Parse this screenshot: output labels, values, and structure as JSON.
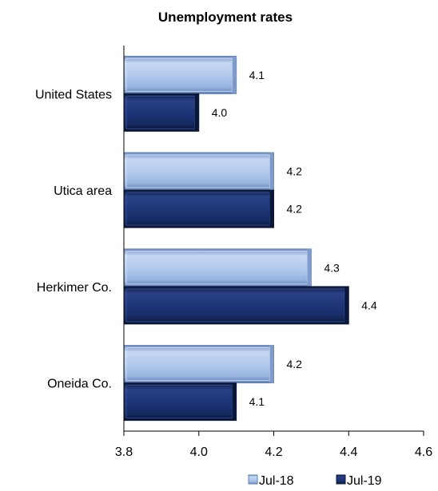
{
  "chart_data": {
    "type": "bar",
    "orientation": "horizontal",
    "title": "Unemployment rates",
    "categories": [
      "United States",
      "Utica area",
      "Herkimer Co.",
      "Oneida Co."
    ],
    "series": [
      {
        "name": "Jul-18",
        "values": [
          4.1,
          4.2,
          4.3,
          4.2
        ],
        "labels": [
          "4.1",
          "4.2",
          "4.3",
          "4.2"
        ],
        "color": "#a9c4ec",
        "edge": "#5d7fb0"
      },
      {
        "name": "Jul-19",
        "values": [
          4.0,
          4.2,
          4.4,
          4.1
        ],
        "labels": [
          "4.0",
          "4.2",
          "4.4",
          "4.1"
        ],
        "color": "#1a2f6b",
        "edge": "#0d1a40"
      }
    ],
    "xlim": [
      3.8,
      4.6
    ],
    "xticks": [
      "3.8",
      "4.0",
      "4.2",
      "4.4",
      "4.6"
    ],
    "grid": false,
    "legend_position": "bottom-right"
  }
}
